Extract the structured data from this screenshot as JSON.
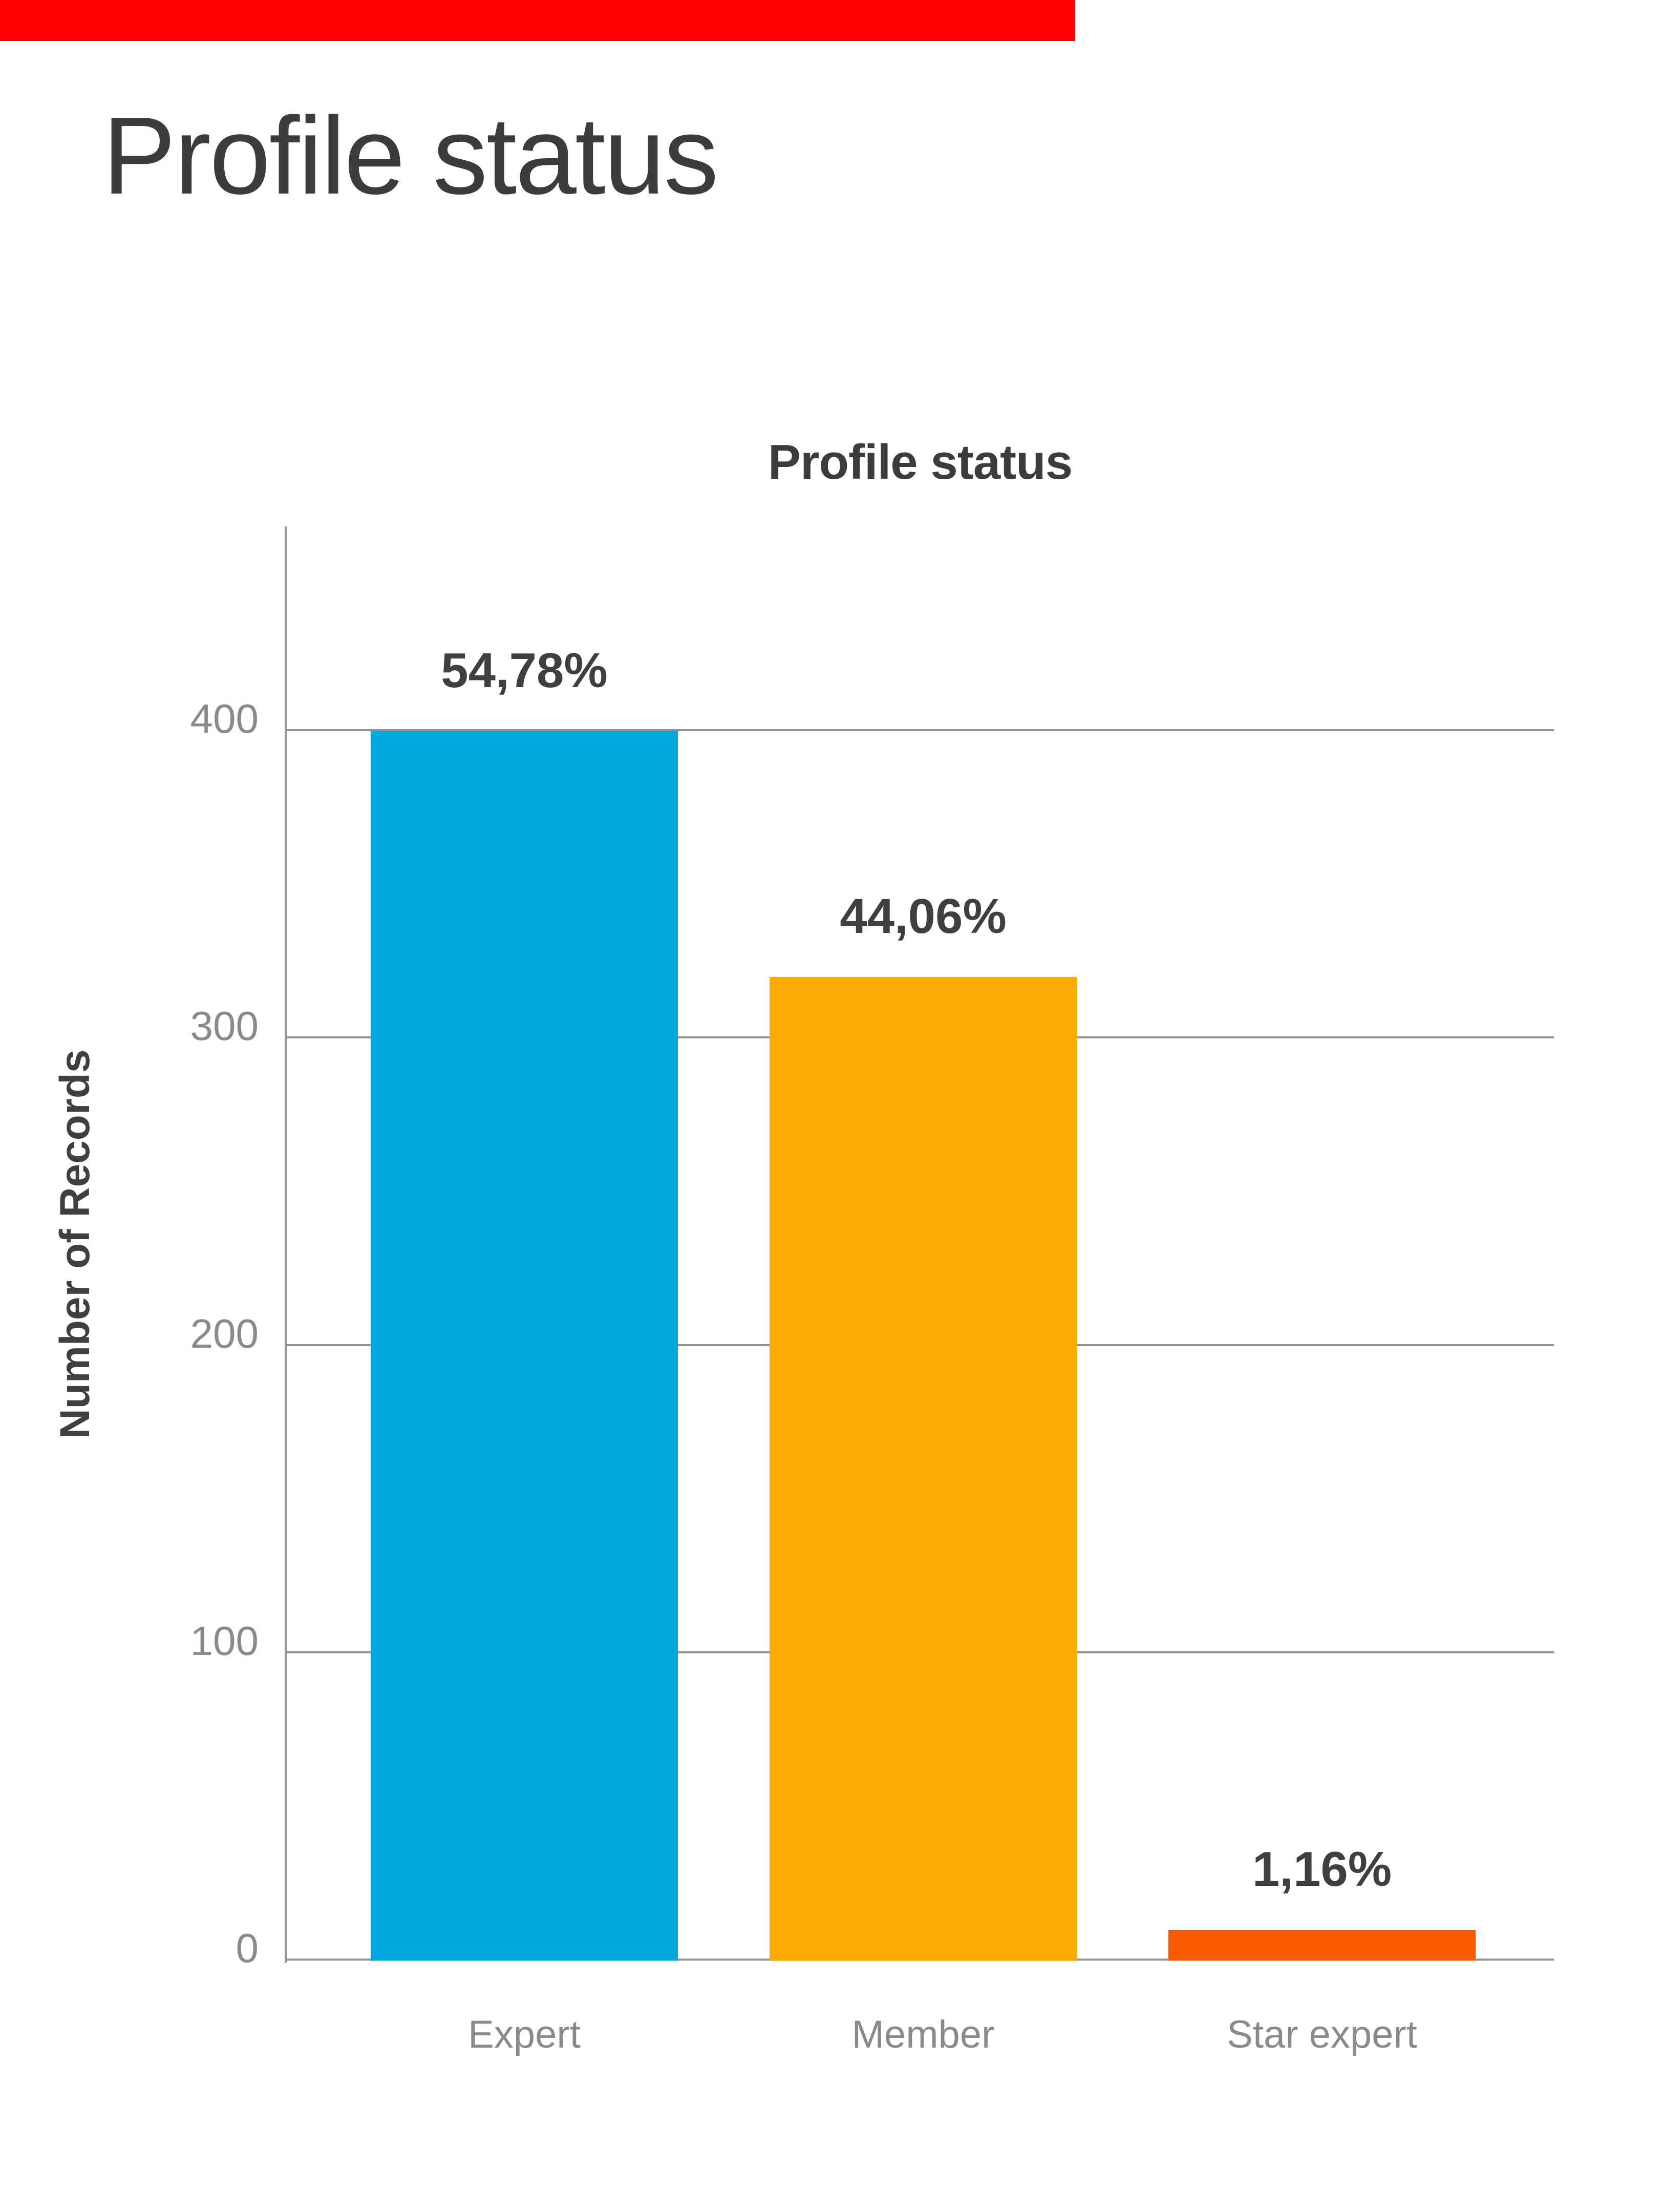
{
  "page": {
    "title": "Profile status"
  },
  "banner": {
    "color": "#fe0000"
  },
  "chart": {
    "title": "Profile status",
    "y_axis": {
      "label": "Number of Records",
      "tick_labels": [
        "0",
        "100",
        "200",
        "300",
        "400"
      ]
    },
    "bars": [
      {
        "category": "Expert",
        "value_label": "54,78%",
        "color": "#00a8dc"
      },
      {
        "category": "Member",
        "value_label": "44,06%",
        "color": "#faaa00"
      },
      {
        "category": "Star expert",
        "value_label": "1,16%",
        "color": "#fa5b00"
      }
    ]
  },
  "chart_data": {
    "type": "bar",
    "title": "Profile status",
    "categories": [
      "Expert",
      "Member",
      "Star expert"
    ],
    "values": [
      400,
      320,
      10
    ],
    "data_labels": [
      "54,78%",
      "44,06%",
      "1,16%"
    ],
    "xlabel": "",
    "ylabel": "Number of Records",
    "ylim": [
      0,
      466
    ],
    "yticks": [
      0,
      100,
      200,
      300,
      400
    ],
    "grid": true,
    "legend": false,
    "bar_colors": [
      "#00a8dc",
      "#faaa00",
      "#fa5b00"
    ]
  }
}
